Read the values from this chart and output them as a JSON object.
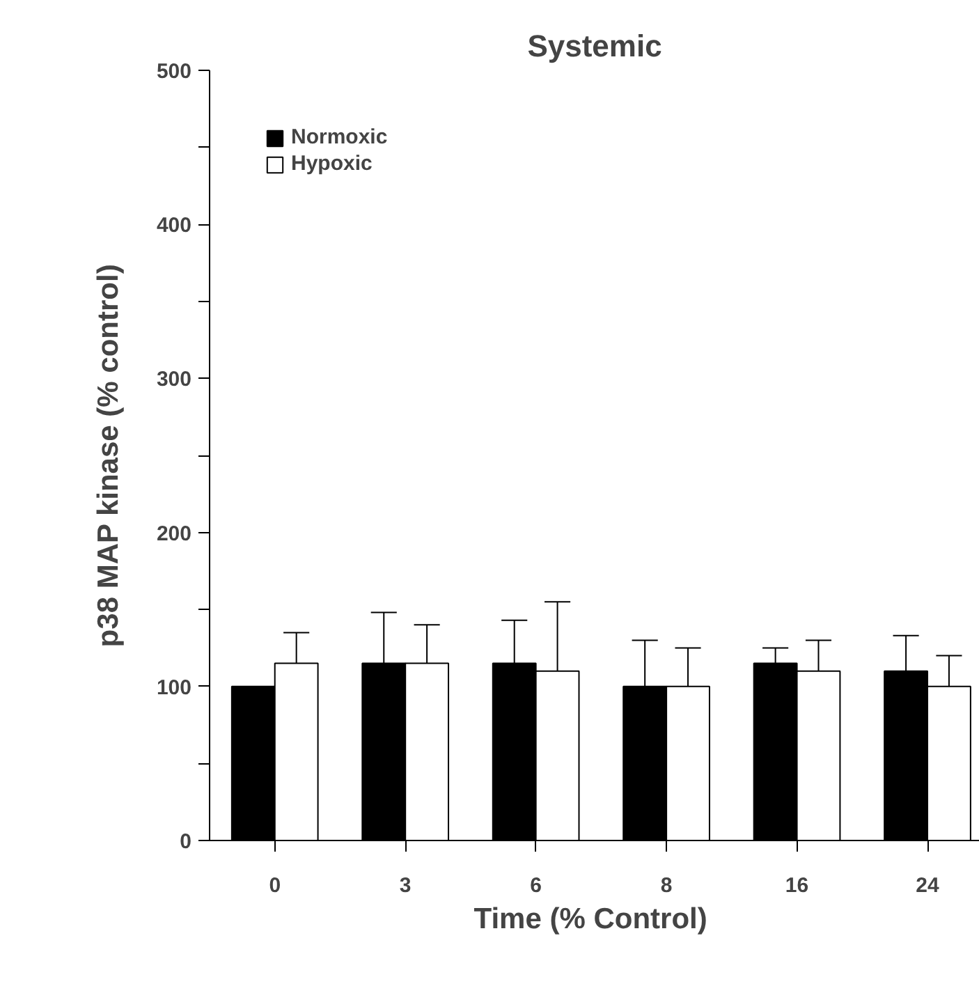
{
  "chart_data": {
    "type": "bar",
    "title": "Systemic",
    "xlabel": "Time  (% Control)",
    "ylabel": "p38 MAP kinase (% control)",
    "categories": [
      "0",
      "3",
      "6",
      "8",
      "16",
      "24"
    ],
    "series": [
      {
        "name": "Normoxic",
        "color": "#000000",
        "values": [
          100,
          115,
          115,
          100,
          115,
          110
        ],
        "errors": [
          null,
          [
            115,
            148
          ],
          [
            115,
            143
          ],
          [
            100,
            130
          ],
          [
            115,
            125
          ],
          [
            110,
            133
          ]
        ]
      },
      {
        "name": "Hypoxic",
        "color": "#ffffff",
        "values": [
          115,
          115,
          110,
          100,
          110,
          100
        ],
        "errors": [
          [
            115,
            135
          ],
          [
            115,
            140
          ],
          [
            110,
            155
          ],
          [
            100,
            125
          ],
          [
            110,
            130
          ],
          [
            100,
            120
          ]
        ]
      }
    ],
    "ylim": [
      0,
      500
    ],
    "yticks": [
      0,
      {
        "value": 50,
        "label": null
      },
      100,
      {
        "value": 150,
        "label": null
      },
      200,
      {
        "value": 250,
        "label": null
      },
      300,
      {
        "value": 350,
        "label": null
      },
      400,
      {
        "value": 450,
        "label": null
      },
      500
    ],
    "legend": "top left"
  }
}
